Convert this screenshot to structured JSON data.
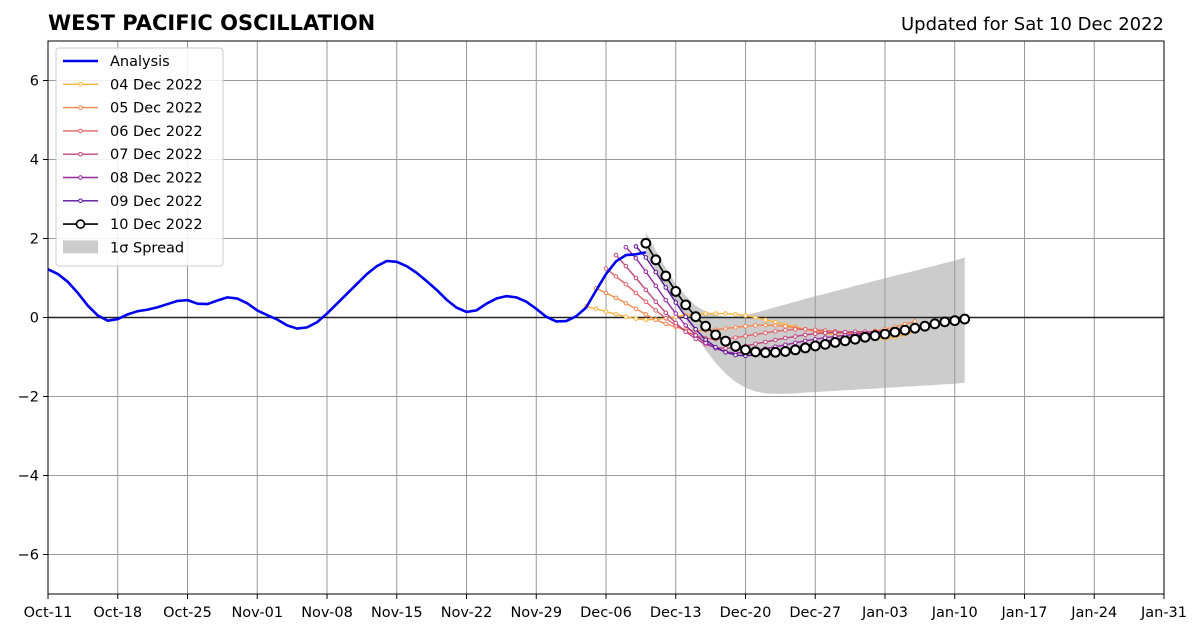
{
  "chart_data": {
    "type": "line",
    "title": "WEST PACIFIC OSCILLATION",
    "subtitle": "Updated for Sat 10 Dec 2022",
    "xlabel": "",
    "ylabel": "",
    "x_ticks": [
      "Oct-11",
      "Oct-18",
      "Oct-25",
      "Nov-01",
      "Nov-08",
      "Nov-15",
      "Nov-22",
      "Nov-29",
      "Dec-06",
      "Dec-13",
      "Dec-20",
      "Dec-27",
      "Jan-03",
      "Jan-10",
      "Jan-17",
      "Jan-24",
      "Jan-31"
    ],
    "y_ticks": [
      "6",
      "4",
      "2",
      "0",
      "−2",
      "−4",
      "−6"
    ],
    "ylim": [
      -7,
      7
    ],
    "xlim": [
      "2022-10-11",
      "2023-01-31"
    ],
    "grid": true,
    "legend_position": "upper-left",
    "analysis": {
      "name": "Analysis",
      "color": "#0000ee",
      "start": "2022-10-11",
      "values": [
        1.22,
        1.1,
        0.9,
        0.62,
        0.3,
        0.05,
        -0.08,
        -0.04,
        0.08,
        0.16,
        0.2,
        0.26,
        0.34,
        0.42,
        0.44,
        0.35,
        0.34,
        0.43,
        0.51,
        0.48,
        0.36,
        0.18,
        0.06,
        -0.05,
        -0.2,
        -0.28,
        -0.25,
        -0.12,
        0.1,
        0.35,
        0.6,
        0.85,
        1.1,
        1.3,
        1.43,
        1.41,
        1.3,
        1.13,
        0.92,
        0.7,
        0.45,
        0.25,
        0.14,
        0.18,
        0.35,
        0.48,
        0.54,
        0.51,
        0.4,
        0.22,
        0.02,
        -0.1,
        -0.09,
        0.03,
        0.25,
        0.68,
        1.1,
        1.42,
        1.58,
        1.6,
        1.65
      ]
    },
    "forecasts": [
      {
        "name": "04 Dec 2022",
        "color": "#f9b43c",
        "start": "2022-12-04",
        "values": [
          0.28,
          0.22,
          0.15,
          0.08,
          0.02,
          -0.03,
          -0.06,
          -0.05,
          -0.02,
          0.02,
          0.06,
          0.08,
          0.1,
          0.1,
          0.1,
          0.08,
          0.05,
          0.0,
          -0.06,
          -0.12,
          -0.18,
          -0.24,
          -0.3,
          -0.35,
          -0.4,
          -0.44,
          -0.48,
          -0.51,
          -0.53,
          -0.54,
          -0.54,
          -0.5,
          -0.43,
          -0.35
        ]
      },
      {
        "name": "05 Dec 2022",
        "color": "#f5874f",
        "start": "2022-12-05",
        "values": [
          0.74,
          0.62,
          0.5,
          0.36,
          0.22,
          0.08,
          -0.06,
          -0.16,
          -0.24,
          -0.3,
          -0.33,
          -0.33,
          -0.31,
          -0.28,
          -0.25,
          -0.22,
          -0.2,
          -0.19,
          -0.2,
          -0.22,
          -0.26,
          -0.3,
          -0.34,
          -0.37,
          -0.39,
          -0.4,
          -0.4,
          -0.38,
          -0.34,
          -0.3,
          -0.24,
          -0.17,
          -0.1
        ]
      },
      {
        "name": "06 Dec 2022",
        "color": "#e0636a",
        "start": "2022-12-06",
        "values": [
          1.24,
          1.04,
          0.84,
          0.62,
          0.4,
          0.18,
          -0.02,
          -0.2,
          -0.35,
          -0.46,
          -0.53,
          -0.55,
          -0.54,
          -0.51,
          -0.47,
          -0.43,
          -0.39,
          -0.35,
          -0.32,
          -0.3,
          -0.3,
          -0.31,
          -0.33,
          -0.35,
          -0.37,
          -0.39,
          -0.41,
          -0.42,
          -0.42,
          -0.4,
          -0.37,
          -0.32
        ]
      },
      {
        "name": "07 Dec 2022",
        "color": "#c2447e",
        "start": "2022-12-07",
        "values": [
          1.58,
          1.3,
          1.0,
          0.7,
          0.4,
          0.12,
          -0.14,
          -0.36,
          -0.54,
          -0.68,
          -0.76,
          -0.78,
          -0.76,
          -0.72,
          -0.67,
          -0.62,
          -0.57,
          -0.52,
          -0.48,
          -0.44,
          -0.41,
          -0.39,
          -0.38,
          -0.37,
          -0.36,
          -0.36,
          -0.36,
          -0.35,
          -0.33,
          -0.3,
          -0.25
        ]
      },
      {
        "name": "08 Dec 2022",
        "color": "#9527a0",
        "start": "2022-12-08",
        "values": [
          1.78,
          1.5,
          1.16,
          0.8,
          0.44,
          0.1,
          -0.2,
          -0.45,
          -0.64,
          -0.78,
          -0.87,
          -0.9,
          -0.88,
          -0.84,
          -0.79,
          -0.74,
          -0.69,
          -0.64,
          -0.59,
          -0.55,
          -0.51,
          -0.48,
          -0.45,
          -0.43,
          -0.41,
          -0.39,
          -0.37,
          -0.35,
          -0.31,
          -0.27
        ]
      },
      {
        "name": "09 Dec 2022",
        "color": "#57119c",
        "start": "2022-12-09",
        "values": [
          1.8,
          1.52,
          1.15,
          0.76,
          0.38,
          0.02,
          -0.3,
          -0.56,
          -0.75,
          -0.88,
          -0.95,
          -0.97,
          -0.95,
          -0.91,
          -0.86,
          -0.81,
          -0.76,
          -0.71,
          -0.66,
          -0.61,
          -0.56,
          -0.52,
          -0.48,
          -0.44,
          -0.4,
          -0.36,
          -0.32,
          -0.28,
          -0.24
        ]
      }
    ],
    "primary_forecast": {
      "name": "10 Dec 2022",
      "color": "#000000",
      "start": "2022-12-10",
      "values": [
        1.88,
        1.46,
        1.05,
        0.66,
        0.32,
        0.02,
        -0.22,
        -0.44,
        -0.6,
        -0.73,
        -0.82,
        -0.87,
        -0.89,
        -0.88,
        -0.86,
        -0.82,
        -0.77,
        -0.72,
        -0.68,
        -0.63,
        -0.59,
        -0.55,
        -0.5,
        -0.46,
        -0.42,
        -0.37,
        -0.32,
        -0.27,
        -0.22,
        -0.16,
        -0.11,
        -0.08,
        -0.04
      ]
    },
    "spread": {
      "name": "1σ Spread",
      "color": "#cccccc",
      "start": "2022-12-10",
      "upper": [
        2.15,
        1.7,
        1.25,
        0.85,
        0.55,
        0.3,
        0.15,
        0.06,
        0.02,
        0.02,
        0.06,
        0.12,
        0.19,
        0.26,
        0.33,
        0.4,
        0.47,
        0.54,
        0.6,
        0.67,
        0.73,
        0.8,
        0.86,
        0.93,
        0.99,
        1.06,
        1.12,
        1.18,
        1.25,
        1.31,
        1.38,
        1.44,
        1.52
      ],
      "lower": [
        1.6,
        1.2,
        0.78,
        0.35,
        -0.05,
        -0.45,
        -0.82,
        -1.15,
        -1.42,
        -1.63,
        -1.78,
        -1.87,
        -1.92,
        -1.93,
        -1.93,
        -1.92,
        -1.9,
        -1.89,
        -1.87,
        -1.86,
        -1.84,
        -1.83,
        -1.81,
        -1.8,
        -1.78,
        -1.77,
        -1.75,
        -1.74,
        -1.72,
        -1.71,
        -1.69,
        -1.68,
        -1.65
      ]
    }
  }
}
